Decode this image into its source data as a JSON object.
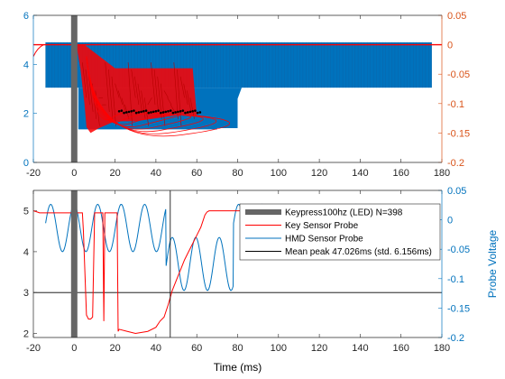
{
  "chart_data": [
    {
      "type": "line",
      "subplot": "top",
      "title": "",
      "xlabel": "",
      "ylabel_left": "",
      "ylabel_right": "",
      "xlim": [
        -20,
        180
      ],
      "ylim_left": [
        0,
        6
      ],
      "ylim_right": [
        -0.2,
        0.05
      ],
      "xticks": [
        "-20",
        "0",
        "20",
        "40",
        "60",
        "80",
        "100",
        "120",
        "140",
        "160",
        "180"
      ],
      "yticks_left": [
        "0",
        "2",
        "4",
        "6"
      ],
      "yticks_right": [
        "-0.2",
        "-0.15",
        "-0.1",
        "-0.05",
        "0",
        "0.05"
      ],
      "keypress_bar_x": 0,
      "hmd_band": {
        "x_start": -14,
        "x_end": 175,
        "y_low": 3.05,
        "y_high": 4.9,
        "y_low_ext": 1.4,
        "x_ext_end": 80
      },
      "key_envelope": {
        "x": [
          1,
          3,
          5,
          6,
          8,
          12,
          20,
          30,
          40,
          50,
          58,
          60
        ],
        "y_right": [
          0,
          -0.04,
          -0.1,
          -0.14,
          -0.15,
          -0.142,
          -0.13,
          -0.13,
          -0.125,
          -0.12,
          -0.12,
          -0.12
        ]
      },
      "black_markers": {
        "x_range": [
          22,
          62
        ],
        "y_right": -0.113
      },
      "colors": {
        "key": "#ff0000",
        "hmd": "#0072bd",
        "right_axis": "#d95319",
        "bar": "#666666"
      }
    },
    {
      "type": "line",
      "subplot": "bottom",
      "title": "",
      "xlabel": "Time (ms)",
      "ylabel_left": "",
      "ylabel_right": "Probe Voltage",
      "xlim": [
        -20,
        180
      ],
      "ylim_left": [
        1.9,
        5.5
      ],
      "ylim_right": [
        -0.2,
        0.05
      ],
      "xticks": [
        "-20",
        "0",
        "20",
        "40",
        "60",
        "80",
        "100",
        "120",
        "140",
        "160",
        "180"
      ],
      "yticks_left": [
        "2",
        "3",
        "4",
        "5"
      ],
      "yticks_right": [
        "-0.2",
        "-0.15",
        "-0.1",
        "-0.05",
        "0",
        "0.05"
      ],
      "keypress_bar_x": 0,
      "mean_peak_x": 47.026,
      "horizontal_line_y": 3,
      "legend": [
        {
          "label": "Keypress100hz (LED)  N=398",
          "color": "#666666",
          "style": "bar"
        },
        {
          "label": "Key Sensor Probe",
          "color": "#ff0000",
          "style": "line"
        },
        {
          "label": "HMD Sensor Probe",
          "color": "#0072bd",
          "style": "line"
        },
        {
          "label": "Mean peak 47.026ms (std. 6.156ms)",
          "color": "#000000",
          "style": "line"
        }
      ],
      "series": [
        {
          "name": "Key Sensor Probe",
          "axis": "left",
          "x": [
            -20,
            -18,
            -17,
            -10,
            -5,
            0,
            4,
            4.5,
            6,
            7,
            8,
            9,
            10,
            11,
            13,
            14,
            14.5,
            15,
            21,
            21.5,
            22,
            26,
            30,
            36,
            40,
            42,
            44,
            46,
            48,
            50,
            52,
            54,
            57,
            60,
            62,
            64,
            65,
            66,
            70,
            80,
            90,
            100,
            110,
            120,
            130,
            140,
            150,
            160,
            170,
            175
          ],
          "y": [
            5,
            4.97,
            4.95,
            4.95,
            4.95,
            4.95,
            4.95,
            4.5,
            2.45,
            2.35,
            2.35,
            2.4,
            4.95,
            4.95,
            4.95,
            4.95,
            2.3,
            4.95,
            4.95,
            2.05,
            2.1,
            2.05,
            2.0,
            2.05,
            2.15,
            2.3,
            2.4,
            2.7,
            3.05,
            3.3,
            3.55,
            3.8,
            4.1,
            4.4,
            4.6,
            4.9,
            4.97,
            5.0,
            5.0,
            5.0,
            5.0,
            5.0,
            5.0,
            5.0,
            5.0,
            5.0,
            5.0,
            5.0,
            5.0,
            5.0
          ]
        },
        {
          "name": "HMD Sensor Probe",
          "axis": "left",
          "start_x": -14,
          "end_x": 175,
          "segments": [
            {
              "x_start": -14,
              "x_end": 45,
              "period_ms": 11.5,
              "center": 4.58,
              "amplitude": 0.58,
              "phase_ms": 0
            },
            {
              "x_start": 45,
              "x_end": 78,
              "period_ms": 11.5,
              "center": 3.7,
              "amplitude": 0.65,
              "phase_ms": 2
            },
            {
              "x_start": 78,
              "x_end": 175,
              "period_ms": 11.5,
              "center": 4.58,
              "amplitude": 0.58,
              "phase_ms": 0
            }
          ]
        }
      ],
      "colors": {
        "key": "#ff0000",
        "hmd": "#0072bd",
        "right_axis": "#0072bd",
        "bar": "#666666"
      }
    }
  ]
}
